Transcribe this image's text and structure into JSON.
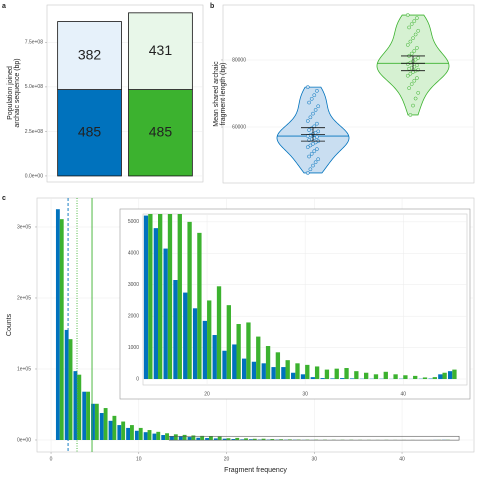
{
  "chart_data": [
    {
      "panel": "a",
      "type": "stacked_bar",
      "ylabel": [
        "Population joined",
        "archaic sequence (bp)"
      ],
      "categories": [
        null,
        null
      ],
      "series": [
        {
          "colors": [
            "#0072bd",
            "#3cb22f"
          ],
          "values": [
            485000000,
            485000000
          ],
          "value_labels": [
            "485",
            "485"
          ]
        },
        {
          "colors": [
            "#e6f1fa",
            "#e8f7e9"
          ],
          "values": [
            382000000,
            431000000
          ],
          "value_labels": [
            "382",
            "431"
          ]
        }
      ],
      "ylim": [
        -34000000,
        960000000
      ],
      "yticks": [
        {
          "value": 0,
          "label": "0.0e+00"
        },
        {
          "value": 250000000,
          "label": "2.5e+08"
        },
        {
          "value": 500000000,
          "label": "5.0e+08"
        },
        {
          "value": 750000000,
          "label": "7.5e+08"
        }
      ],
      "grid": true
    },
    {
      "panel": "b",
      "type": "violin",
      "ylabel": [
        "Mean shared archaic",
        "fragment length (bp)"
      ],
      "groups": [
        {
          "color": "#0072bd",
          "fill": "#c9def1",
          "mean": 57800,
          "error": 2000,
          "values": [
            71900,
            70800,
            69500,
            68400,
            67300,
            66200,
            65100,
            64000,
            62900,
            61800,
            61000,
            60200,
            59600,
            59100,
            58700,
            58300,
            57900,
            57600,
            57300,
            57000,
            56700,
            56400,
            56100,
            55800,
            55400,
            55000,
            54500,
            54000,
            53400,
            52800,
            52000,
            51200,
            50400,
            49500,
            48500,
            47400,
            46300
          ]
        },
        {
          "color": "#3cb22f",
          "fill": "#d6f1d2",
          "mean": 79000,
          "error": 2200,
          "values": [
            93400,
            92500,
            91600,
            90700,
            89700,
            88700,
            87600,
            86500,
            85500,
            84500,
            83600,
            82700,
            81900,
            81200,
            80600,
            80100,
            79600,
            79200,
            78800,
            78400,
            78000,
            77700,
            77400,
            77100,
            76800,
            76400,
            75900,
            75300,
            74600,
            73800,
            72800,
            71600,
            70200,
            68500,
            66400,
            63600
          ]
        }
      ],
      "ylim": [
        43300,
        96400
      ],
      "yticks": [
        60000,
        80000
      ],
      "grid": true
    },
    {
      "panel": "c",
      "type": "grouped_bar",
      "xlabel": "Fragment frequency",
      "ylabel": "Counts",
      "x": [
        1,
        2,
        3,
        4,
        5,
        6,
        7,
        8,
        9,
        10,
        11,
        12,
        13,
        14,
        15,
        16,
        17,
        18,
        19,
        20,
        21,
        22,
        23,
        24,
        25,
        26,
        27,
        28,
        29,
        30,
        31,
        32,
        33,
        34,
        35,
        36,
        37,
        38,
        39,
        40,
        41,
        42,
        43,
        44,
        45
      ],
      "series": [
        {
          "color": "#0072bd",
          "values": [
            325000,
            155000,
            97000,
            68000,
            51000,
            38000,
            27000,
            21000,
            17000,
            13000,
            11000,
            9000,
            7000,
            5200,
            4800,
            4150,
            3150,
            2750,
            2250,
            1850,
            1400,
            900,
            1100,
            650,
            550,
            500,
            380,
            380,
            200,
            150,
            60,
            30,
            20,
            30,
            20,
            10,
            10,
            10,
            5,
            10,
            5,
            10,
            15,
            150,
            250
          ]
        },
        {
          "color": "#3cb22f",
          "values": [
            311000,
            142000,
            92000,
            68000,
            51000,
            45000,
            34000,
            26000,
            21000,
            17000,
            14000,
            11500,
            9500,
            8000,
            7200,
            6400,
            5800,
            5000,
            4650,
            2500,
            2950,
            2350,
            1750,
            1800,
            1350,
            1050,
            850,
            600,
            500,
            450,
            400,
            300,
            330,
            350,
            250,
            200,
            150,
            230,
            150,
            120,
            100,
            50,
            60,
            200,
            300
          ]
        }
      ],
      "reference_lines": [
        {
          "x": 1.94,
          "color": "#0072bd",
          "style": "dashed"
        },
        {
          "x": 2.96,
          "color": "#3cb22f",
          "style": "dotted"
        },
        {
          "x": 4.67,
          "color": "#3cb22f",
          "style": "solid"
        }
      ],
      "xlim": [
        -1.6,
        48.2
      ],
      "xticks": [
        0,
        10,
        20,
        30,
        40
      ],
      "ylim": [
        -16900,
        340800
      ],
      "yticks": [
        {
          "value": 0,
          "label": "0e+00"
        },
        {
          "value": 100000,
          "label": "1e+05"
        },
        {
          "value": 200000,
          "label": "2e+05"
        },
        {
          "value": 300000,
          "label": "3e+05"
        }
      ],
      "grid": true,
      "inset": {
        "xlim": [
          13.47,
          46.5
        ],
        "xticks": [
          20,
          30,
          40
        ],
        "ylim": [
          -190,
          5250
        ],
        "yticks": [
          0,
          1000,
          2000,
          3000,
          4000,
          5000
        ]
      }
    }
  ]
}
